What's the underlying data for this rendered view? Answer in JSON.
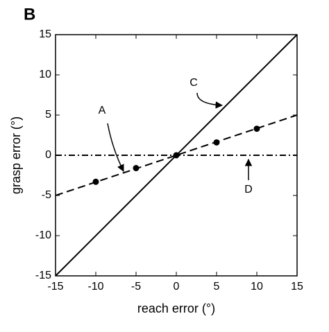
{
  "chart_data": {
    "type": "line",
    "panel_label": "B",
    "xlabel": "reach error (°)",
    "ylabel": "grasp error (°)",
    "xlim": [
      -15,
      15
    ],
    "ylim": [
      -15,
      15
    ],
    "xticks": [
      -15,
      -10,
      -5,
      0,
      5,
      10,
      15
    ],
    "yticks": [
      -15,
      -10,
      -5,
      0,
      5,
      10,
      15
    ],
    "series": [
      {
        "color": "#000000",
        "linestyle": "solid",
        "x": [
          -15,
          15
        ],
        "values": [
          -15,
          15
        ]
      },
      {
        "color": "#000000",
        "linestyle": "dashed",
        "x": [
          -15,
          15
        ],
        "values": [
          -5,
          5
        ]
      },
      {
        "color": "#000000",
        "linestyle": "dashdot",
        "x": [
          -15,
          15
        ],
        "values": [
          0,
          0
        ]
      },
      {
        "color": "#000000",
        "linestyle": "none",
        "marker": "circle",
        "x": [
          -10,
          -5,
          0,
          5,
          10
        ],
        "values": [
          -3.3,
          -1.6,
          0,
          1.6,
          3.3
        ]
      }
    ],
    "annotations": [
      "A",
      "C",
      "D"
    ]
  }
}
